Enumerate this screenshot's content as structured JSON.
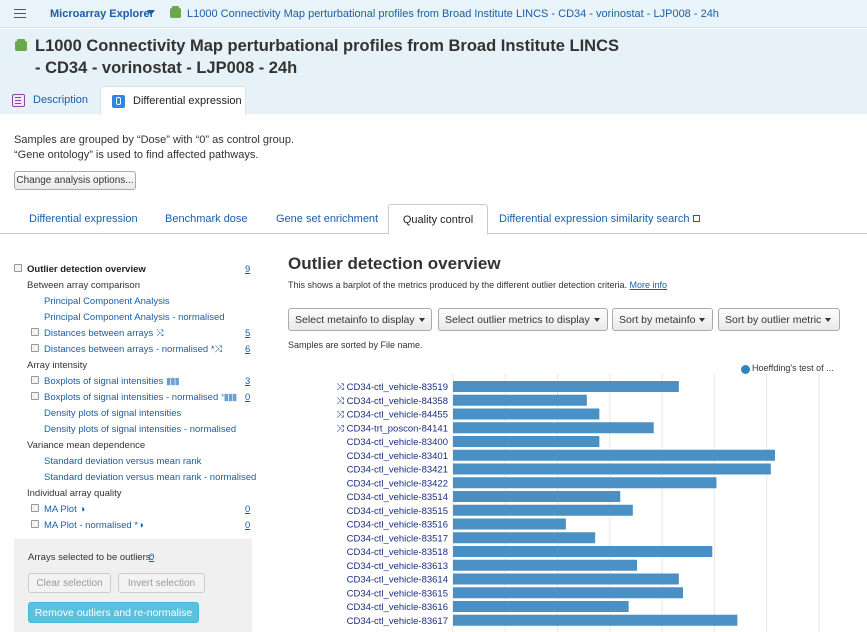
{
  "topbar": {
    "brand": "Microarray Explorer",
    "breadcrumb": "L1000 Connectivity Map perturbational profiles from Broad Institute LINCS - CD34 - vorinostat - LJP008 - 24h"
  },
  "header": {
    "title_line1": "L1000 Connectivity Map perturbational profiles from Broad Institute LINCS",
    "title_line2": "- CD34 - vorinostat - LJP008 - 24h",
    "tabs": [
      {
        "label": "Description"
      },
      {
        "label": "Differential expression"
      }
    ]
  },
  "analysis": {
    "line1": "Samples are grouped by “Dose” with “0” as control group.",
    "line2": "“Gene ontology” is used to find affected pathways.",
    "change_button": "Change analysis options..."
  },
  "subtabs": [
    {
      "label": "Differential expression"
    },
    {
      "label": "Benchmark dose"
    },
    {
      "label": "Gene set enrichment"
    },
    {
      "label": "Quality control"
    },
    {
      "label": "Differential expression similarity search"
    }
  ],
  "sidebar": {
    "overview": {
      "label": "Outlier detection overview",
      "count": "9"
    },
    "between": "Between array comparison",
    "pca": "Principal Component Analysis",
    "pca_norm": "Principal Component Analysis - normalised",
    "dist": {
      "label": "Distances between arrays",
      "count": "5"
    },
    "dist_norm": {
      "label": "Distances between arrays - normalised",
      "count": "6"
    },
    "intensity": "Array intensity",
    "box": {
      "label": "Boxplots of signal intensities",
      "count": "3"
    },
    "box_norm": {
      "label": "Boxplots of signal intensities - normalised",
      "count": "0"
    },
    "density": "Density plots of signal intensities",
    "density_norm": "Density plots of signal intensities - normalised",
    "variance": "Variance mean dependence",
    "sd": "Standard deviation versus mean rank",
    "sd_norm": "Standard deviation versus mean rank - normalised",
    "individual": "Individual array quality",
    "ma": {
      "label": "MA Plot",
      "count": "0"
    },
    "ma_norm": {
      "label": "MA Plot - normalised",
      "count": "0"
    },
    "outliers_label": "Arrays selected to be outliers:",
    "outliers_count": "0",
    "clear": "Clear selection",
    "invert": "Invert selection",
    "remove": "Remove outliers and re-normalise"
  },
  "main": {
    "title": "Outlier detection overview",
    "subtitle": "This shows a barplot of the metrics produced by the different outlier detection criteria.",
    "more_info": "More info",
    "dropdowns": [
      "Select metainfo to display",
      "Select outlier metrics to display",
      "Sort by metainfo",
      "Sort by outlier metric"
    ],
    "sorted_note": "Samples are sorted by File name."
  },
  "chart_data": {
    "type": "bar",
    "orientation": "horizontal",
    "legend": [
      {
        "name": "Hoeffding's test of ...",
        "color": "#4a90c4",
        "position": "top-right"
      }
    ],
    "categories": [
      "CD34-ctl_vehicle-83519",
      "CD34-ctl_vehicle-84358",
      "CD34-ctl_vehicle-84455",
      "CD34-trt_poscon-84141",
      "CD34-ctl_vehicle-83400",
      "CD34-ctl_vehicle-83401",
      "CD34-ctl_vehicle-83421",
      "CD34-ctl_vehicle-83422",
      "CD34-ctl_vehicle-83514",
      "CD34-ctl_vehicle-83515",
      "CD34-ctl_vehicle-83516",
      "CD34-ctl_vehicle-83517",
      "CD34-ctl_vehicle-83518",
      "CD34-ctl_vehicle-83613",
      "CD34-ctl_vehicle-83614",
      "CD34-ctl_vehicle-83615",
      "CD34-ctl_vehicle-83616",
      "CD34-ctl_vehicle-83617"
    ],
    "marked": [
      true,
      true,
      true,
      true,
      false,
      false,
      false,
      false,
      false,
      false,
      false,
      false,
      false,
      false,
      false,
      false,
      false,
      false
    ],
    "values": [
      0.54,
      0.32,
      0.35,
      0.48,
      0.35,
      0.77,
      0.76,
      0.63,
      0.4,
      0.43,
      0.27,
      0.34,
      0.62,
      0.44,
      0.54,
      0.55,
      0.42,
      0.68
    ],
    "xlim": [
      0,
      1
    ],
    "grid": true
  }
}
